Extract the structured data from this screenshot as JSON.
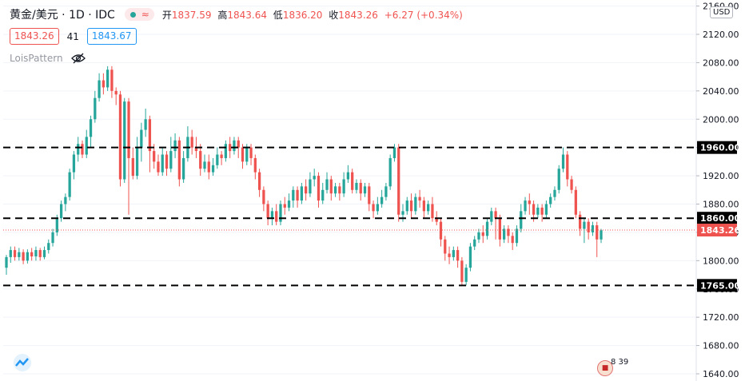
{
  "header": {
    "symbol": "黄金/美元 · 1D · IDC",
    "open_label": "开",
    "open_value": "1837.59",
    "high_label": "高",
    "high_value": "1843.64",
    "low_label": "低",
    "low_value": "1836.20",
    "close_label": "收",
    "close_value": "1843.26",
    "change": "+6.27 (+0.34%)"
  },
  "trade": {
    "sell": "1843.26",
    "spread": "41",
    "buy": "1843.67"
  },
  "indicator": {
    "name": "LoisPattern"
  },
  "axis": {
    "currency": "USD"
  },
  "events": {
    "label": "8 39"
  },
  "colors": {
    "up": "#26a69a",
    "down": "#ef5350",
    "level_line": "#000000",
    "current_line": "#ef5350"
  },
  "chart_data": {
    "type": "candlestick",
    "title": "黄金/美元 · 1D · IDC",
    "ylim": [
      1630,
      2165
    ],
    "y_ticks": [
      1640,
      1680,
      1720,
      1760,
      1800,
      1840,
      1880,
      1920,
      1960,
      2000,
      2040,
      2080,
      2120,
      2160
    ],
    "horizontal_levels": [
      1960.0,
      1860.0,
      1765.0
    ],
    "current_price": 1843.26,
    "candles": [
      [
        1790,
        1805,
        1780,
        1808
      ],
      [
        1805,
        1815,
        1797,
        1820
      ],
      [
        1815,
        1805,
        1800,
        1820
      ],
      [
        1805,
        1812,
        1800,
        1818
      ],
      [
        1812,
        1800,
        1795,
        1816
      ],
      [
        1800,
        1812,
        1796,
        1816
      ],
      [
        1812,
        1806,
        1800,
        1818
      ],
      [
        1806,
        1815,
        1800,
        1820
      ],
      [
        1815,
        1805,
        1800,
        1818
      ],
      [
        1805,
        1815,
        1802,
        1820
      ],
      [
        1815,
        1825,
        1810,
        1830
      ],
      [
        1825,
        1840,
        1820,
        1845
      ],
      [
        1840,
        1860,
        1835,
        1865
      ],
      [
        1860,
        1880,
        1855,
        1885
      ],
      [
        1880,
        1890,
        1870,
        1895
      ],
      [
        1890,
        1925,
        1885,
        1930
      ],
      [
        1925,
        1950,
        1915,
        1955
      ],
      [
        1950,
        1965,
        1940,
        1975
      ],
      [
        1965,
        1950,
        1945,
        1970
      ],
      [
        1950,
        1975,
        1945,
        1985
      ],
      [
        1975,
        2000,
        1960,
        2005
      ],
      [
        2000,
        2030,
        1995,
        2040
      ],
      [
        2030,
        2055,
        2025,
        2065
      ],
      [
        2055,
        2045,
        2035,
        2065
      ],
      [
        2045,
        2070,
        2040,
        2075
      ],
      [
        2070,
        2040,
        2030,
        2075
      ],
      [
        2040,
        2035,
        2020,
        2045
      ],
      [
        2035,
        1915,
        1905,
        2040
      ],
      [
        1915,
        2025,
        1910,
        2030
      ],
      [
        2025,
        1945,
        1865,
        2030
      ],
      [
        1945,
        1920,
        1915,
        1960
      ],
      [
        1920,
        1960,
        1915,
        1975
      ],
      [
        1960,
        1985,
        1940,
        1995
      ],
      [
        1985,
        2000,
        1975,
        2015
      ],
      [
        2000,
        1955,
        1925,
        2005
      ],
      [
        1955,
        1940,
        1930,
        1965
      ],
      [
        1940,
        1925,
        1920,
        1950
      ],
      [
        1925,
        1950,
        1920,
        1960
      ],
      [
        1950,
        1930,
        1920,
        1955
      ],
      [
        1930,
        1955,
        1925,
        1975
      ],
      [
        1955,
        1970,
        1945,
        1980
      ],
      [
        1970,
        1915,
        1905,
        1975
      ],
      [
        1915,
        1945,
        1910,
        1955
      ],
      [
        1945,
        1975,
        1940,
        1990
      ],
      [
        1975,
        1960,
        1950,
        1985
      ],
      [
        1960,
        1955,
        1945,
        1975
      ],
      [
        1955,
        1930,
        1920,
        1965
      ],
      [
        1930,
        1940,
        1925,
        1950
      ],
      [
        1940,
        1925,
        1915,
        1950
      ],
      [
        1925,
        1935,
        1920,
        1945
      ],
      [
        1935,
        1950,
        1930,
        1960
      ],
      [
        1950,
        1945,
        1935,
        1955
      ],
      [
        1945,
        1965,
        1940,
        1970
      ],
      [
        1965,
        1955,
        1945,
        1975
      ],
      [
        1955,
        1970,
        1950,
        1975
      ],
      [
        1970,
        1960,
        1945,
        1975
      ],
      [
        1960,
        1940,
        1930,
        1965
      ],
      [
        1940,
        1960,
        1935,
        1965
      ],
      [
        1960,
        1945,
        1935,
        1965
      ],
      [
        1945,
        1925,
        1915,
        1950
      ],
      [
        1925,
        1900,
        1890,
        1930
      ],
      [
        1900,
        1880,
        1870,
        1905
      ],
      [
        1880,
        1860,
        1850,
        1885
      ],
      [
        1860,
        1870,
        1850,
        1875
      ],
      [
        1870,
        1855,
        1850,
        1880
      ],
      [
        1855,
        1880,
        1850,
        1885
      ],
      [
        1880,
        1875,
        1865,
        1890
      ],
      [
        1875,
        1885,
        1870,
        1895
      ],
      [
        1885,
        1900,
        1875,
        1905
      ],
      [
        1900,
        1885,
        1875,
        1905
      ],
      [
        1885,
        1905,
        1880,
        1910
      ],
      [
        1905,
        1895,
        1885,
        1915
      ],
      [
        1895,
        1915,
        1890,
        1925
      ],
      [
        1915,
        1920,
        1905,
        1930
      ],
      [
        1920,
        1885,
        1875,
        1925
      ],
      [
        1885,
        1900,
        1880,
        1910
      ],
      [
        1900,
        1915,
        1895,
        1925
      ],
      [
        1915,
        1895,
        1885,
        1920
      ],
      [
        1895,
        1905,
        1890,
        1910
      ],
      [
        1905,
        1895,
        1885,
        1910
      ],
      [
        1895,
        1915,
        1890,
        1925
      ],
      [
        1915,
        1925,
        1910,
        1935
      ],
      [
        1925,
        1900,
        1895,
        1930
      ],
      [
        1900,
        1910,
        1895,
        1915
      ],
      [
        1910,
        1895,
        1885,
        1915
      ],
      [
        1895,
        1905,
        1890,
        1910
      ],
      [
        1905,
        1880,
        1870,
        1910
      ],
      [
        1880,
        1870,
        1860,
        1885
      ],
      [
        1870,
        1880,
        1865,
        1890
      ],
      [
        1880,
        1890,
        1875,
        1900
      ],
      [
        1890,
        1905,
        1885,
        1910
      ],
      [
        1905,
        1945,
        1900,
        1950
      ],
      [
        1945,
        1960,
        1940,
        1965
      ],
      [
        1960,
        1865,
        1855,
        1965
      ],
      [
        1865,
        1870,
        1855,
        1880
      ],
      [
        1870,
        1885,
        1865,
        1890
      ],
      [
        1885,
        1870,
        1860,
        1895
      ],
      [
        1870,
        1890,
        1865,
        1895
      ],
      [
        1890,
        1885,
        1875,
        1900
      ],
      [
        1885,
        1870,
        1860,
        1890
      ],
      [
        1870,
        1880,
        1865,
        1885
      ],
      [
        1880,
        1860,
        1855,
        1890
      ],
      [
        1860,
        1855,
        1850,
        1870
      ],
      [
        1855,
        1830,
        1820,
        1860
      ],
      [
        1830,
        1810,
        1800,
        1835
      ],
      [
        1810,
        1805,
        1795,
        1820
      ],
      [
        1805,
        1815,
        1800,
        1820
      ],
      [
        1815,
        1800,
        1790,
        1820
      ],
      [
        1800,
        1770,
        1765,
        1805
      ],
      [
        1770,
        1790,
        1765,
        1795
      ],
      [
        1790,
        1820,
        1785,
        1825
      ],
      [
        1820,
        1830,
        1815,
        1835
      ],
      [
        1830,
        1840,
        1825,
        1845
      ],
      [
        1840,
        1835,
        1825,
        1850
      ],
      [
        1835,
        1855,
        1830,
        1860
      ],
      [
        1855,
        1870,
        1850,
        1875
      ],
      [
        1870,
        1860,
        1830,
        1875
      ],
      [
        1860,
        1830,
        1820,
        1865
      ],
      [
        1830,
        1845,
        1825,
        1850
      ],
      [
        1845,
        1835,
        1825,
        1850
      ],
      [
        1835,
        1825,
        1815,
        1840
      ],
      [
        1825,
        1845,
        1820,
        1850
      ],
      [
        1845,
        1870,
        1840,
        1880
      ],
      [
        1870,
        1885,
        1865,
        1890
      ],
      [
        1885,
        1880,
        1865,
        1895
      ],
      [
        1880,
        1865,
        1855,
        1885
      ],
      [
        1865,
        1875,
        1860,
        1880
      ],
      [
        1875,
        1865,
        1855,
        1880
      ],
      [
        1865,
        1880,
        1860,
        1885
      ],
      [
        1880,
        1890,
        1875,
        1895
      ],
      [
        1890,
        1900,
        1885,
        1905
      ],
      [
        1900,
        1930,
        1895,
        1935
      ],
      [
        1930,
        1950,
        1925,
        1960
      ],
      [
        1950,
        1915,
        1905,
        1955
      ],
      [
        1915,
        1900,
        1895,
        1920
      ],
      [
        1900,
        1865,
        1860,
        1905
      ],
      [
        1865,
        1845,
        1835,
        1870
      ],
      [
        1845,
        1855,
        1825,
        1860
      ],
      [
        1855,
        1840,
        1830,
        1860
      ],
      [
        1840,
        1850,
        1835,
        1855
      ],
      [
        1850,
        1830,
        1805,
        1855
      ],
      [
        1830,
        1843,
        1825,
        1845
      ]
    ]
  }
}
